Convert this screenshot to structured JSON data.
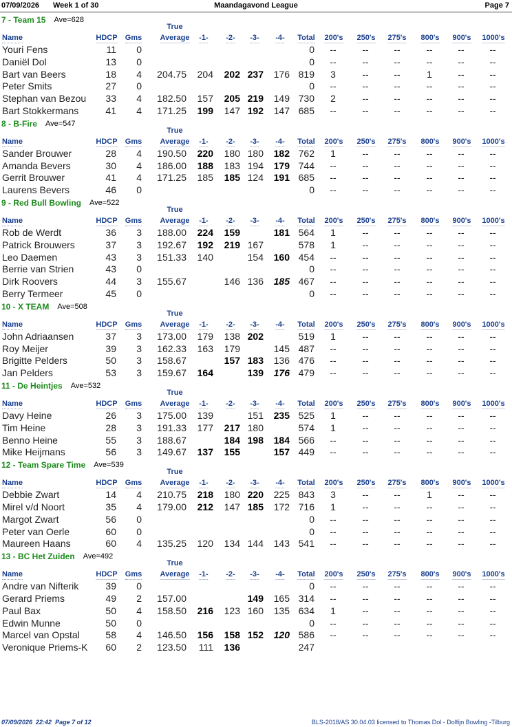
{
  "header": {
    "date": "07/09/2026",
    "week": "Week 1 of 30",
    "league": "Maandagavond League",
    "page": "Page 7"
  },
  "average_top": "True",
  "columns": [
    "Name",
    "HDCP",
    "Gms",
    "Average",
    "-1-",
    "-2-",
    "-3-",
    "-4-",
    "Total",
    "200's",
    "250's",
    "275's",
    "800's",
    "900's",
    "1000's"
  ],
  "teams": [
    {
      "title": "7 - Team 15",
      "ave": "Ave=628",
      "rows": [
        [
          "Youri Fens",
          11,
          0,
          null,
          null,
          null,
          null,
          null,
          0,
          "--",
          "--",
          "--",
          "--",
          "--",
          "--"
        ],
        [
          "Daniël Dol",
          13,
          0,
          null,
          null,
          null,
          null,
          null,
          0,
          "--",
          "--",
          "--",
          "--",
          "--",
          "--"
        ],
        [
          "Bart van Beers",
          18,
          4,
          "204.75",
          204,
          202,
          237,
          176,
          819,
          3,
          "--",
          "--",
          1,
          "--",
          "--"
        ],
        [
          "Peter Smits",
          27,
          0,
          null,
          null,
          null,
          null,
          null,
          0,
          "--",
          "--",
          "--",
          "--",
          "--",
          "--"
        ],
        [
          "Stephan van Bezou",
          33,
          4,
          "182.50",
          157,
          205,
          219,
          149,
          730,
          2,
          "--",
          "--",
          "--",
          "--",
          "--"
        ],
        [
          "Bart Stokkermans",
          41,
          4,
          "171.25",
          199,
          147,
          192,
          147,
          685,
          "--",
          "--",
          "--",
          "--",
          "--",
          "--"
        ]
      ]
    },
    {
      "title": "8 - B-Fire",
      "ave": "Ave=547",
      "rows": [
        [
          "Sander Brouwer",
          28,
          4,
          "190.50",
          220,
          180,
          180,
          182,
          762,
          1,
          "--",
          "--",
          "--",
          "--",
          "--"
        ],
        [
          "Amanda Bevers",
          30,
          4,
          "186.00",
          188,
          183,
          194,
          179,
          744,
          "--",
          "--",
          "--",
          "--",
          "--",
          "--"
        ],
        [
          "Gerrit Brouwer",
          41,
          4,
          "171.25",
          185,
          185,
          124,
          191,
          685,
          "--",
          "--",
          "--",
          "--",
          "--",
          "--"
        ],
        [
          "Laurens Bevers",
          46,
          0,
          null,
          null,
          null,
          null,
          null,
          0,
          "--",
          "--",
          "--",
          "--",
          "--",
          "--"
        ]
      ]
    },
    {
      "title": "9 - Red Bull Bowling",
      "ave": "Ave=522",
      "rows": [
        [
          "Rob de Werdt",
          36,
          3,
          "188.00",
          224,
          159,
          null,
          181,
          564,
          1,
          "--",
          "--",
          "--",
          "--",
          "--"
        ],
        [
          "Patrick Brouwers",
          37,
          3,
          "192.67",
          192,
          219,
          167,
          null,
          578,
          1,
          "--",
          "--",
          "--",
          "--",
          "--"
        ],
        [
          "Leo Daemen",
          43,
          3,
          "151.33",
          140,
          null,
          154,
          160,
          454,
          "--",
          "--",
          "--",
          "--",
          "--",
          "--"
        ],
        [
          "Berrie van Strien",
          43,
          0,
          null,
          null,
          null,
          null,
          null,
          0,
          "--",
          "--",
          "--",
          "--",
          "--",
          "--"
        ],
        [
          "Dirk Roovers",
          44,
          3,
          "155.67",
          null,
          146,
          136,
          185,
          467,
          "--",
          "--",
          "--",
          "--",
          "--",
          "--"
        ],
        [
          "Berry Termeer",
          45,
          0,
          null,
          null,
          null,
          null,
          null,
          0,
          "--",
          "--",
          "--",
          "--",
          "--",
          "--"
        ]
      ]
    },
    {
      "title": "10 - X TEAM",
      "ave": "Ave=508",
      "rows": [
        [
          "John Adriaansen",
          37,
          3,
          "173.00",
          179,
          138,
          202,
          null,
          519,
          1,
          "--",
          "--",
          "--",
          "--",
          "--"
        ],
        [
          "Roy Meijer",
          39,
          3,
          "162.33",
          163,
          179,
          null,
          145,
          487,
          "--",
          "--",
          "--",
          "--",
          "--",
          "--"
        ],
        [
          "Brigitte Pelders",
          50,
          3,
          "158.67",
          null,
          157,
          183,
          136,
          476,
          "--",
          "--",
          "--",
          "--",
          "--",
          "--"
        ],
        [
          "Jan Pelders",
          53,
          3,
          "159.67",
          164,
          null,
          139,
          176,
          479,
          "--",
          "--",
          "--",
          "--",
          "--",
          "--"
        ]
      ]
    },
    {
      "title": "11 - De Heintjes",
      "ave": "Ave=532",
      "rows": [
        [
          "Davy Heine",
          26,
          3,
          "175.00",
          139,
          null,
          151,
          235,
          525,
          1,
          "--",
          "--",
          "--",
          "--",
          "--"
        ],
        [
          "Tim Heine",
          28,
          3,
          "191.33",
          177,
          217,
          180,
          null,
          574,
          1,
          "--",
          "--",
          "--",
          "--",
          "--"
        ],
        [
          "Benno Heine",
          55,
          3,
          "188.67",
          null,
          184,
          198,
          184,
          566,
          "--",
          "--",
          "--",
          "--",
          "--",
          "--"
        ],
        [
          "Mike Heijmans",
          56,
          3,
          "149.67",
          137,
          155,
          null,
          157,
          449,
          "--",
          "--",
          "--",
          "--",
          "--",
          "--"
        ]
      ]
    },
    {
      "title": "12 - Team Spare Time",
      "ave": "Ave=539",
      "rows": [
        [
          "Debbie Zwart",
          14,
          4,
          "210.75",
          218,
          180,
          220,
          225,
          843,
          3,
          "--",
          "--",
          1,
          "--",
          "--"
        ],
        [
          "Mirel v/d Noort",
          35,
          4,
          "179.00",
          212,
          147,
          185,
          172,
          716,
          1,
          "--",
          "--",
          "--",
          "--",
          "--"
        ],
        [
          "Margot Zwart",
          56,
          0,
          null,
          null,
          null,
          null,
          null,
          0,
          "--",
          "--",
          "--",
          "--",
          "--",
          "--"
        ],
        [
          "Peter van Oerle",
          60,
          0,
          null,
          null,
          null,
          null,
          null,
          0,
          "--",
          "--",
          "--",
          "--",
          "--",
          "--"
        ],
        [
          "Maureen Haans",
          60,
          4,
          "135.25",
          120,
          134,
          144,
          143,
          541,
          "--",
          "--",
          "--",
          "--",
          "--",
          "--"
        ]
      ]
    },
    {
      "title": "13 - BC Het Zuiden",
      "ave": "Ave=492",
      "rows": [
        [
          "Andre van Nifterik",
          39,
          0,
          null,
          null,
          null,
          null,
          null,
          0,
          "--",
          "--",
          "--",
          "--",
          "--",
          "--"
        ],
        [
          "Gerard Priems",
          49,
          2,
          "157.00",
          null,
          null,
          149,
          165,
          314,
          "--",
          "--",
          "--",
          "--",
          "--",
          "--"
        ],
        [
          "Paul Bax",
          50,
          4,
          "158.50",
          216,
          123,
          160,
          135,
          634,
          1,
          "--",
          "--",
          "--",
          "--",
          "--"
        ],
        [
          "Edwin Munne",
          50,
          0,
          null,
          null,
          null,
          null,
          null,
          0,
          "--",
          "--",
          "--",
          "--",
          "--",
          "--"
        ],
        [
          "Marcel van Opstal",
          58,
          4,
          "146.50",
          156,
          158,
          152,
          120,
          586,
          "--",
          "--",
          "--",
          "--",
          "--",
          "--"
        ],
        [
          "Veronique Priems-K",
          60,
          2,
          "123.50",
          111,
          136,
          null,
          null,
          247,
          null,
          null,
          null,
          null,
          null,
          null
        ]
      ]
    }
  ],
  "footer": {
    "left": "07/09/2026  22:42  Page 7 of 12",
    "right": "BLS-2018/AS 30.04.03 licensed to Thomas Dol - Dolfijn Bowling -Tilburg"
  }
}
